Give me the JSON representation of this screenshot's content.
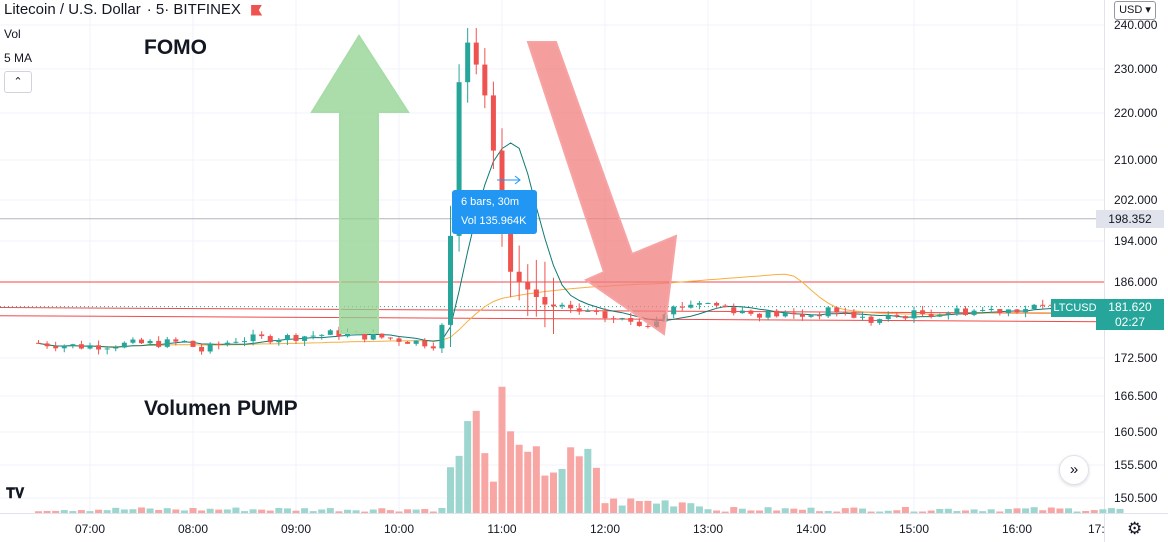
{
  "header": {
    "symbol_title": "Litecoin / U.S. Dollar",
    "interval": "5",
    "exchange": "BITFINEX"
  },
  "legend": {
    "vol_label": "Vol",
    "ma_label": "5 MA",
    "collapse_icon": "chevron-up-icon"
  },
  "annotations": {
    "fomo": "FOMO",
    "volumen_pump": "Volumen PUMP",
    "fomo_color": "#ef5350",
    "volumen_color": "#2962ff"
  },
  "tooltip": {
    "bars": "6 bars, 30m",
    "vol": "Vol 135.964K"
  },
  "price_scale": {
    "currency_button": "USD",
    "hover_price": "198.352",
    "ticker_label": "LTCUSD",
    "last_price": "181.620",
    "countdown": "02:27"
  },
  "time_axis": {
    "last_partial_label": "17:"
  },
  "colors": {
    "up": "#26a69a",
    "down": "#ef5350",
    "vol_up": "#9cd6cf",
    "vol_down": "#f7a6a4",
    "ma_teal": "#0e7a73",
    "ma_orange": "#f5b041",
    "level_red": "#f04a4a",
    "arrow_green": "#8fd18f",
    "arrow_red": "#f27d7d"
  },
  "chart_data": {
    "type": "candlestick",
    "title": "Litecoin / U.S. Dollar · 5 · BITFINEX",
    "y_ticks": [
      "240.000",
      "230.000",
      "220.000",
      "210.000",
      "202.000",
      "194.000",
      "186.000",
      "172.500",
      "166.500",
      "160.500",
      "155.500",
      "150.500"
    ],
    "x_ticks": [
      "07:00",
      "08:00",
      "09:00",
      "10:00",
      "11:00",
      "12:00",
      "13:00",
      "14:00",
      "15:00",
      "16:00"
    ],
    "ylim": [
      150,
      242
    ],
    "series": [
      {
        "name": "LTCUSD",
        "kind": "ohlc",
        "x_range": [
          "06:30",
          "17:00"
        ],
        "anchors": [
          [
            "06:30",
            175.2
          ],
          [
            "07:00",
            174.6
          ],
          [
            "07:30",
            175.0
          ],
          [
            "08:00",
            175.3
          ],
          [
            "08:10",
            173.8
          ],
          [
            "08:30",
            175.8
          ],
          [
            "09:00",
            176.2
          ],
          [
            "09:30",
            176.9
          ],
          [
            "10:00",
            176.0
          ],
          [
            "10:25",
            175.0
          ],
          [
            "10:30",
            178.0
          ],
          [
            "10:35",
            195.0
          ],
          [
            "10:40",
            227.0
          ],
          [
            "10:45",
            236.0
          ],
          [
            "10:50",
            231.0
          ],
          [
            "10:55",
            224.0
          ],
          [
            "11:00",
            212.0
          ],
          [
            "11:05",
            196.0
          ],
          [
            "11:10",
            188.0
          ],
          [
            "11:15",
            186.0
          ],
          [
            "11:30",
            182.0
          ],
          [
            "12:00",
            180.0
          ],
          [
            "12:30",
            178.5
          ],
          [
            "12:40",
            181.0
          ],
          [
            "13:00",
            182.5
          ],
          [
            "13:30",
            180.5
          ],
          [
            "14:00",
            180.0
          ],
          [
            "14:20",
            181.0
          ],
          [
            "14:40",
            179.0
          ],
          [
            "15:00",
            180.2
          ],
          [
            "15:30",
            180.8
          ],
          [
            "16:00",
            181.2
          ],
          [
            "16:30",
            181.5
          ],
          [
            "17:00",
            181.6
          ]
        ]
      },
      {
        "name": "Volume",
        "kind": "bars",
        "peaks": [
          [
            "10:40",
            99000
          ],
          [
            "10:45",
            110000
          ],
          [
            "11:00",
            135964
          ],
          [
            "11:05",
            88000
          ]
        ]
      }
    ],
    "levels": [
      186.0,
      180.4,
      179.3
    ],
    "hover_level": 198.352
  }
}
